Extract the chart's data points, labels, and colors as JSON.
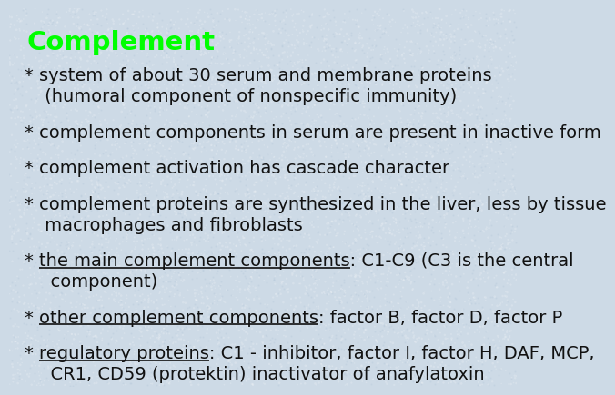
{
  "title": "Complement",
  "title_color": "#00FF00",
  "title_fontsize": 21,
  "background_color": "#cddae6",
  "text_color": "#111111",
  "body_fontsize": 14,
  "items": [
    {
      "bullet": true,
      "line1": "system of about 30 serum and membrane proteins",
      "line2": " (humoral component of nonspecific immunity)",
      "ul_text": null
    },
    {
      "bullet": true,
      "line1": "complement components in serum are present in inactive form",
      "line2": null,
      "ul_text": null
    },
    {
      "bullet": true,
      "line1": "complement activation has cascade character",
      "line2": null,
      "ul_text": null
    },
    {
      "bullet": true,
      "line1": "complement proteins are synthesized in the liver, less by tissue",
      "line2": " macrophages and fibroblasts",
      "ul_text": null
    },
    {
      "bullet": true,
      "line1": "the main complement components: C1-C9 (C3 is the central",
      "line2": "  component)",
      "ul_text": "the main complement components"
    },
    {
      "bullet": true,
      "line1": "other complement components: factor B, factor D, factor P",
      "line2": null,
      "ul_text": "other complement components"
    },
    {
      "bullet": true,
      "line1": "regulatory proteins: C1 - inhibitor, factor I, factor H, DAF, MCP,",
      "line2": "  CR1, CD59 (protektin) inactivator of anafylatoxin",
      "ul_text": "regulatory proteins"
    }
  ]
}
